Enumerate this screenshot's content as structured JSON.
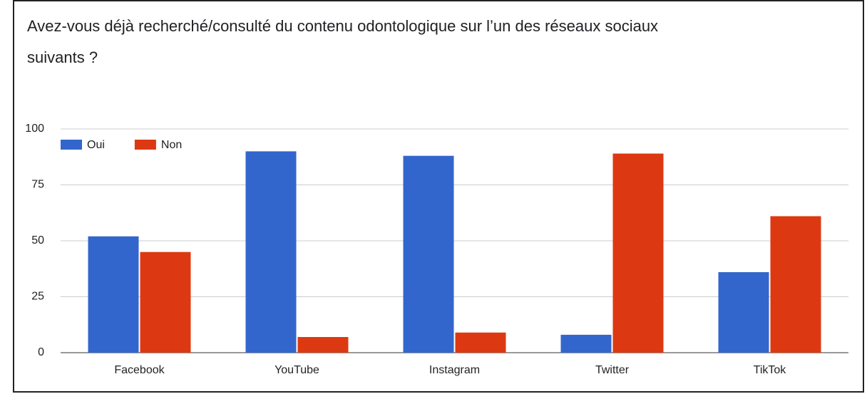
{
  "chart_data": {
    "type": "bar",
    "title": "Avez-vous déjà recherché/consulté du contenu odontologique sur l’un des réseaux sociaux suivants ?",
    "categories": [
      "Facebook",
      "YouTube",
      "Instagram",
      "Twitter",
      "TikTok"
    ],
    "series": [
      {
        "name": "Oui",
        "color": "#3366cc",
        "values": [
          52,
          90,
          88,
          8,
          36
        ]
      },
      {
        "name": "Non",
        "color": "#dc3912",
        "values": [
          45,
          7,
          9,
          89,
          61
        ]
      }
    ],
    "ylim": [
      0,
      100
    ],
    "yticks": [
      0,
      25,
      50,
      75,
      100
    ],
    "grid": true,
    "legend": "top-left"
  }
}
